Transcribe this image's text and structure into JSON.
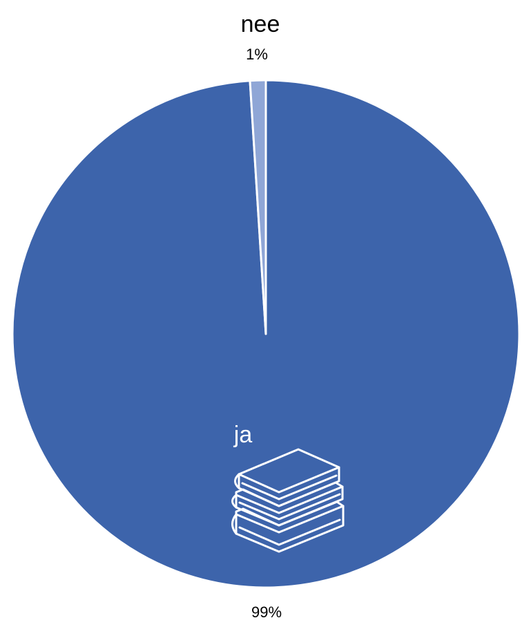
{
  "chart_data": {
    "type": "pie",
    "title": "",
    "categories": [
      "ja",
      "nee"
    ],
    "values": [
      99,
      1
    ],
    "data_labels": [
      "99%",
      "1%"
    ],
    "colors": [
      "#3d64ab",
      "#8fa6d6"
    ],
    "legend": "none",
    "icons": [
      "books-icon"
    ]
  }
}
